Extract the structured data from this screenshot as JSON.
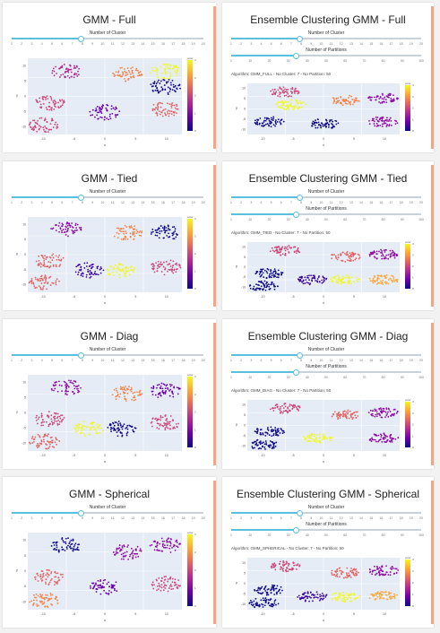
{
  "slider_labels": {
    "clusters": "Number of Cluster",
    "partitions": "Number of Partitions"
  },
  "cluster_ticks": [
    "1",
    "2",
    "3",
    "4",
    "5",
    "6",
    "7",
    "8",
    "9",
    "10",
    "11",
    "12",
    "13",
    "14",
    "15",
    "16",
    "17",
    "18",
    "19",
    "20"
  ],
  "partition_ticks": [
    "1",
    "10",
    "20",
    "30",
    "40",
    "50",
    "60",
    "70",
    "80",
    "90",
    "100"
  ],
  "colorbar": {
    "title": "color",
    "ticks": [
      "4",
      "3",
      "2",
      "1",
      "0"
    ]
  },
  "axes": {
    "x_ticks": [
      "-10",
      "-5",
      "0",
      "5",
      "10"
    ],
    "y_ticks": [
      "10",
      "5",
      "0",
      "-5",
      "-10"
    ],
    "xlabel": "x",
    "ylabel": "y"
  },
  "cards": [
    {
      "title": "GMM - Full",
      "ensemble": false,
      "algo": ""
    },
    {
      "title": "Ensemble Clustering GMM - Full",
      "ensemble": true,
      "algo": "Algorithm: GMM_FULL - No Cluster: 7 - No Partition: 50"
    },
    {
      "title": "GMM - Tied",
      "ensemble": false,
      "algo": ""
    },
    {
      "title": "Ensemble Clustering GMM - Tied",
      "ensemble": true,
      "algo": "Algorithm: GMM_TIED - No Cluster: 7 - No Partition: 50"
    },
    {
      "title": "GMM - Diag",
      "ensemble": false,
      "algo": ""
    },
    {
      "title": "Ensemble Clustering GMM - Diag",
      "ensemble": true,
      "algo": "Algorithm: GMM_DIAG - No Cluster: 7 - No Partition: 50"
    },
    {
      "title": "GMM - Spherical",
      "ensemble": false,
      "algo": ""
    },
    {
      "title": "Ensemble Clustering GMM - Spherical",
      "ensemble": true,
      "algo": "Algorithm: GMM_SPHERICAL - No Cluster: 7 - No Partition: 50"
    }
  ],
  "colors": {
    "plot_bg": "#e5ecf6",
    "accent": "#f4a582",
    "slider": "#5bc0de",
    "plasma": [
      "#0d0887",
      "#6a00a8",
      "#b12a90",
      "#e16462",
      "#fca636",
      "#f0f921"
    ]
  },
  "chart_data": [
    {
      "type": "scatter",
      "title": "GMM - Full",
      "clusters": [
        {
          "x": -7,
          "y": 6,
          "color": 4
        },
        {
          "x": 4,
          "y": 5,
          "color": 7
        },
        {
          "x": 11,
          "y": 6,
          "color": 10
        },
        {
          "x": 11,
          "y": 1,
          "color": 0
        },
        {
          "x": -10,
          "y": -4,
          "color": 5
        },
        {
          "x": 0,
          "y": -7,
          "color": 2
        },
        {
          "x": 11,
          "y": -6,
          "color": 6
        },
        {
          "x": -11,
          "y": -11,
          "color": 5
        }
      ]
    },
    {
      "type": "scatter",
      "title": "Ensemble Clustering GMM - Full",
      "clusters": [
        {
          "x": -7,
          "y": 6,
          "color": 5
        },
        {
          "x": -6,
          "y": 0,
          "color": 10
        },
        {
          "x": 4,
          "y": 2,
          "color": 7
        },
        {
          "x": 11,
          "y": 3,
          "color": 3
        },
        {
          "x": 11,
          "y": -8,
          "color": 3
        },
        {
          "x": 0,
          "y": -9,
          "color": 0
        },
        {
          "x": -10,
          "y": -8,
          "color": 0
        }
      ]
    },
    {
      "type": "scatter",
      "title": "GMM - Tied",
      "clusters": [
        {
          "x": -7,
          "y": 6,
          "color": 3
        },
        {
          "x": 4,
          "y": 5,
          "color": 7
        },
        {
          "x": 11,
          "y": 5,
          "color": 0
        },
        {
          "x": -10,
          "y": -4,
          "color": 6
        },
        {
          "x": -3,
          "y": -7,
          "color": 1
        },
        {
          "x": 3,
          "y": -7,
          "color": 10
        },
        {
          "x": 11,
          "y": -6,
          "color": 5
        },
        {
          "x": -11,
          "y": -11,
          "color": 6
        }
      ]
    },
    {
      "type": "scatter",
      "title": "Ensemble Clustering GMM - Tied",
      "clusters": [
        {
          "x": -7,
          "y": 6,
          "color": 5
        },
        {
          "x": 4,
          "y": 3,
          "color": 6
        },
        {
          "x": 11,
          "y": 4,
          "color": 3
        },
        {
          "x": -10,
          "y": -5,
          "color": 0
        },
        {
          "x": -2,
          "y": -8,
          "color": 1
        },
        {
          "x": 4,
          "y": -8,
          "color": 10
        },
        {
          "x": 11,
          "y": -8,
          "color": 8
        },
        {
          "x": -11,
          "y": -11,
          "color": 0
        }
      ]
    },
    {
      "type": "scatter",
      "title": "GMM - Diag",
      "clusters": [
        {
          "x": -7,
          "y": 6,
          "color": 3
        },
        {
          "x": 4,
          "y": 4,
          "color": 7
        },
        {
          "x": 11,
          "y": 5,
          "color": 2
        },
        {
          "x": 11,
          "y": -5,
          "color": 5
        },
        {
          "x": -10,
          "y": -4,
          "color": 5
        },
        {
          "x": -3,
          "y": -7,
          "color": 10
        },
        {
          "x": 3,
          "y": -7,
          "color": 0
        },
        {
          "x": -11,
          "y": -11,
          "color": 6
        }
      ]
    },
    {
      "type": "scatter",
      "title": "Ensemble Clustering GMM - Diag",
      "clusters": [
        {
          "x": -7,
          "y": 6,
          "color": 5
        },
        {
          "x": 4,
          "y": 3,
          "color": 6
        },
        {
          "x": 11,
          "y": 4,
          "color": 3
        },
        {
          "x": -10,
          "y": -5,
          "color": 0
        },
        {
          "x": -1,
          "y": -8,
          "color": 10
        },
        {
          "x": 11,
          "y": -8,
          "color": 3
        },
        {
          "x": -11,
          "y": -11,
          "color": 0
        }
      ]
    },
    {
      "type": "scatter",
      "title": "GMM - Spherical",
      "clusters": [
        {
          "x": -7,
          "y": 6,
          "color": 0
        },
        {
          "x": 4,
          "y": 4,
          "color": 3
        },
        {
          "x": 11,
          "y": 6,
          "color": 3
        },
        {
          "x": -10,
          "y": -4,
          "color": 6
        },
        {
          "x": 0,
          "y": -7,
          "color": 2
        },
        {
          "x": 11,
          "y": -6,
          "color": 5
        },
        {
          "x": -11,
          "y": -11,
          "color": 7
        }
      ]
    },
    {
      "type": "scatter",
      "title": "Ensemble Clustering GMM - Spherical",
      "clusters": [
        {
          "x": -7,
          "y": 6,
          "color": 5
        },
        {
          "x": 4,
          "y": 3,
          "color": 6
        },
        {
          "x": 11,
          "y": 4,
          "color": 3
        },
        {
          "x": -10,
          "y": -5,
          "color": 0
        },
        {
          "x": -2,
          "y": -8,
          "color": 1
        },
        {
          "x": 4,
          "y": -8,
          "color": 10
        },
        {
          "x": 11,
          "y": -8,
          "color": 8
        },
        {
          "x": -11,
          "y": -11,
          "color": 0
        }
      ]
    }
  ]
}
